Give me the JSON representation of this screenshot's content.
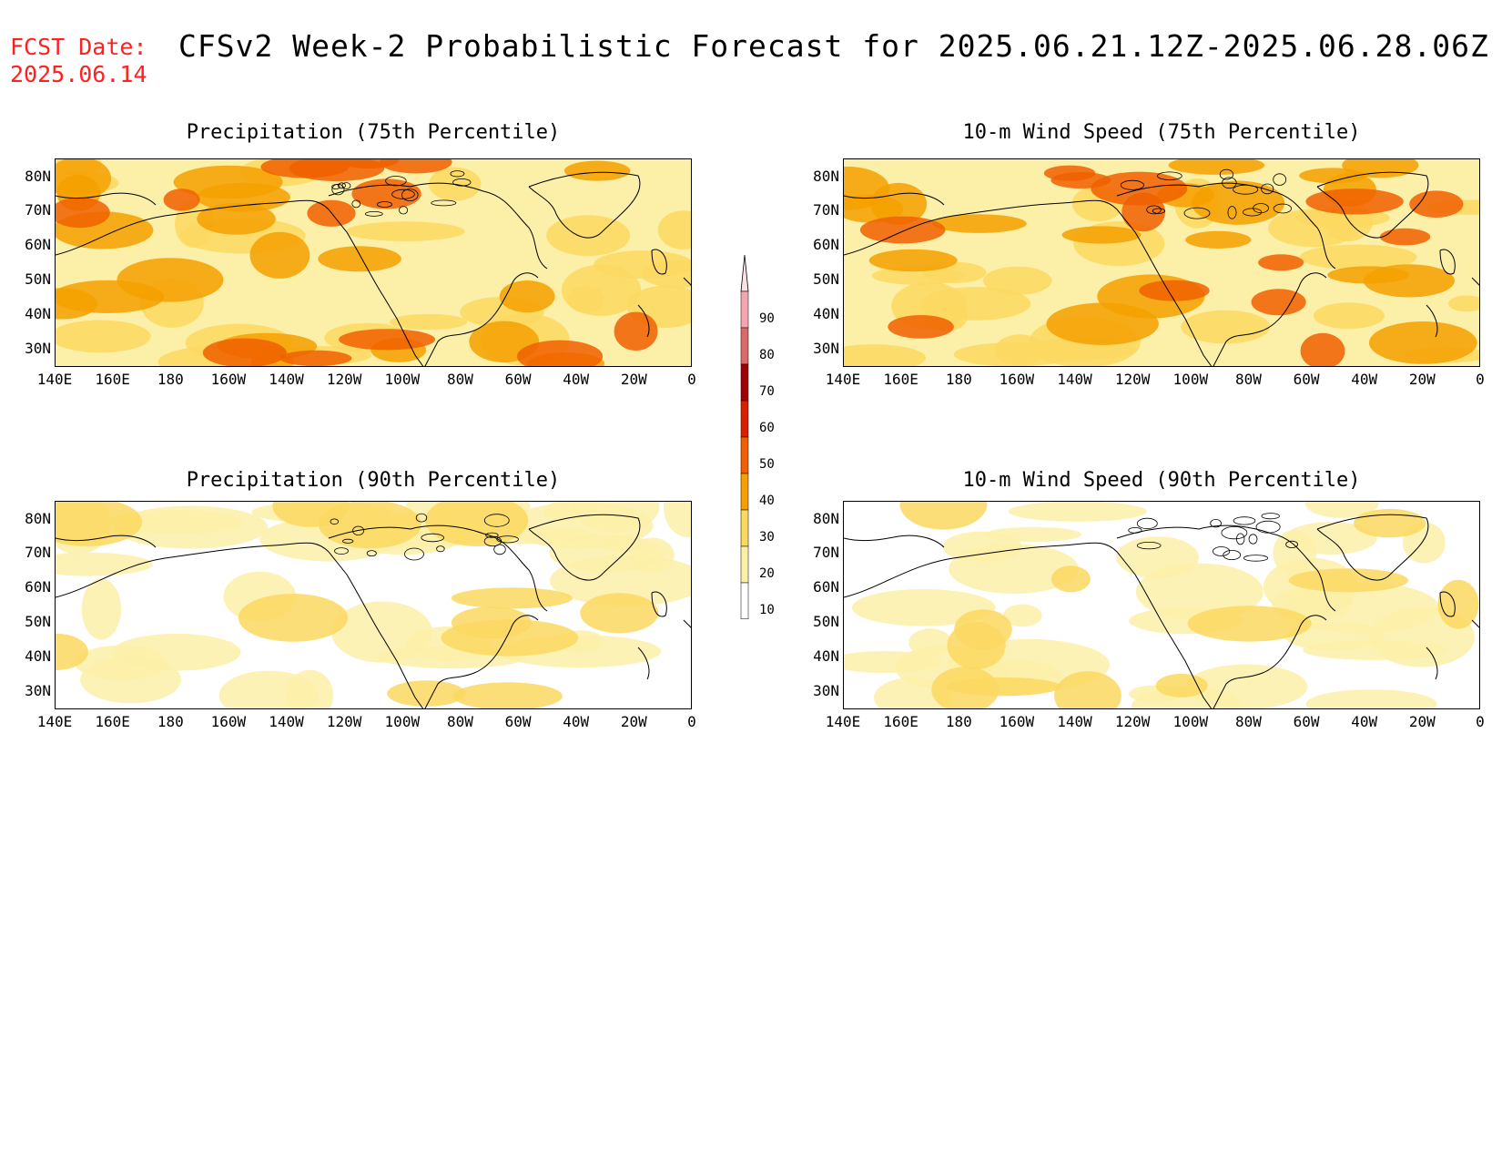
{
  "header": {
    "fcst_label": "FCST Date:\n2025.06.14",
    "title": "CFSv2 Week-2 Probabilistic Forecast for 2025.06.21.12Z-2025.06.28.06Z"
  },
  "axes": {
    "lat_ticks": [
      "80N",
      "70N",
      "60N",
      "50N",
      "40N",
      "30N"
    ],
    "lon_ticks": [
      "140E",
      "160E",
      "180",
      "160W",
      "140W",
      "120W",
      "100W",
      "80W",
      "60W",
      "40W",
      "20W",
      "0"
    ]
  },
  "panels": [
    {
      "title": "Precipitation (75th Percentile)",
      "intensity": 0.75
    },
    {
      "title": "10-m Wind Speed (75th Percentile)",
      "intensity": 0.78
    },
    {
      "title": "Precipitation (90th Percentile)",
      "intensity": 0.3
    },
    {
      "title": "10-m Wind Speed (90th Percentile)",
      "intensity": 0.28
    }
  ],
  "colorbar": {
    "levels": [
      "90",
      "80",
      "70",
      "60",
      "50",
      "40",
      "30",
      "20",
      "10"
    ],
    "colors": [
      "#f4a6b0",
      "#d96a6a",
      "#a00000",
      "#d82000",
      "#f06000",
      "#f5a000",
      "#fbd860",
      "#fcf0a8",
      "#ffffff"
    ]
  }
}
